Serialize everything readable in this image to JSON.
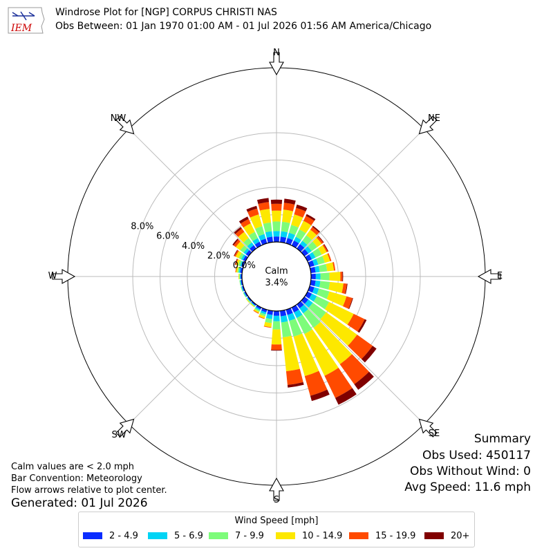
{
  "header": {
    "logo_text": "IEM",
    "title": "Windrose Plot for [NGP] CORPUS CHRISTI NAS",
    "subtitle": "Obs Between: 01 Jan 1970 01:00 AM - 01 Jul 2026 01:56 AM America/Chicago"
  },
  "notes": {
    "calm": "Calm values are < 2.0 mph",
    "bar_convention": "Bar Convention: Meteorology",
    "flow_arrows": "Flow arrows relative to plot center.",
    "generated": "Generated: 01 Jul 2026"
  },
  "summary": {
    "title": "Summary",
    "obs_used": "Obs Used: 450117",
    "obs_without_wind": "Obs Without Wind: 0",
    "avg_speed": "Avg Speed: 11.6 mph"
  },
  "center": {
    "label": "Calm",
    "value": "3.4%"
  },
  "colors": {
    "bins": [
      "#0a2cff",
      "#00d4f5",
      "#7dfc7a",
      "#fde800",
      "#ff4a00",
      "#800000"
    ],
    "grid": "#bbbbbb"
  },
  "chart_data": {
    "type": "windrose",
    "direction_labels": [
      "N",
      "NE",
      "E",
      "SE",
      "S",
      "SW",
      "W",
      "NW"
    ],
    "radial_ticks": [
      "0.0%",
      "2.0%",
      "4.0%",
      "6.0%",
      "8.0%"
    ],
    "radial_max": 8.0,
    "legend_title": "Wind Speed [mph]",
    "bins": [
      "2 - 4.9",
      "5 - 6.9",
      "7 - 9.9",
      "10 - 14.9",
      "15 - 19.9",
      "20+"
    ],
    "sectors": [
      {
        "dir": 0,
        "values": [
          0.4,
          0.4,
          0.7,
          0.8,
          0.5,
          0.3
        ]
      },
      {
        "dir": 10,
        "values": [
          0.4,
          0.4,
          0.7,
          0.9,
          0.5,
          0.3
        ]
      },
      {
        "dir": 20,
        "values": [
          0.4,
          0.4,
          0.6,
          0.8,
          0.5,
          0.25
        ]
      },
      {
        "dir": 30,
        "values": [
          0.4,
          0.3,
          0.6,
          0.7,
          0.4,
          0.15
        ]
      },
      {
        "dir": 40,
        "values": [
          0.4,
          0.3,
          0.5,
          0.5,
          0.25,
          0.1
        ]
      },
      {
        "dir": 50,
        "values": [
          0.35,
          0.3,
          0.5,
          0.4,
          0.15,
          0.05
        ]
      },
      {
        "dir": 60,
        "values": [
          0.35,
          0.3,
          0.5,
          0.4,
          0.1,
          0.05
        ]
      },
      {
        "dir": 70,
        "values": [
          0.35,
          0.3,
          0.5,
          0.4,
          0.1,
          0.0
        ]
      },
      {
        "dir": 80,
        "values": [
          0.35,
          0.3,
          0.55,
          0.5,
          0.1,
          0.0
        ]
      },
      {
        "dir": 90,
        "values": [
          0.35,
          0.35,
          0.65,
          0.8,
          0.15,
          0.05
        ]
      },
      {
        "dir": 100,
        "values": [
          0.35,
          0.35,
          0.7,
          1.0,
          0.25,
          0.05
        ]
      },
      {
        "dir": 110,
        "values": [
          0.35,
          0.35,
          0.8,
          1.3,
          0.45,
          0.05
        ]
      },
      {
        "dir": 120,
        "values": [
          0.35,
          0.4,
          1.0,
          2.0,
          0.9,
          0.15
        ]
      },
      {
        "dir": 130,
        "values": [
          0.35,
          0.4,
          1.2,
          2.8,
          1.4,
          0.35
        ]
      },
      {
        "dir": 140,
        "values": [
          0.35,
          0.45,
          1.3,
          3.3,
          1.8,
          0.5
        ]
      },
      {
        "dir": 150,
        "values": [
          0.4,
          0.45,
          1.3,
          3.4,
          1.8,
          0.55
        ]
      },
      {
        "dir": 160,
        "values": [
          0.4,
          0.45,
          1.2,
          3.0,
          1.5,
          0.4
        ]
      },
      {
        "dir": 170,
        "values": [
          0.4,
          0.45,
          1.1,
          2.5,
          1.0,
          0.2
        ]
      },
      {
        "dir": 180,
        "values": [
          0.35,
          0.4,
          0.6,
          1.1,
          0.4,
          0.05
        ]
      },
      {
        "dir": 190,
        "values": [
          0.3,
          0.3,
          0.3,
          0.3,
          0.05,
          0.0
        ]
      },
      {
        "dir": 200,
        "values": [
          0.2,
          0.15,
          0.15,
          0.15,
          0.05,
          0.0
        ]
      },
      {
        "dir": 210,
        "values": [
          0.15,
          0.1,
          0.1,
          0.1,
          0.05,
          0.0
        ]
      },
      {
        "dir": 220,
        "values": [
          0.1,
          0.05,
          0.05,
          0.05,
          0.0,
          0.0
        ]
      },
      {
        "dir": 230,
        "values": [
          0.1,
          0.05,
          0.05,
          0.05,
          0.0,
          0.0
        ]
      },
      {
        "dir": 240,
        "values": [
          0.1,
          0.05,
          0.05,
          0.0,
          0.0,
          0.0
        ]
      },
      {
        "dir": 250,
        "values": [
          0.1,
          0.05,
          0.05,
          0.0,
          0.0,
          0.0
        ]
      },
      {
        "dir": 260,
        "values": [
          0.1,
          0.05,
          0.05,
          0.0,
          0.0,
          0.0
        ]
      },
      {
        "dir": 270,
        "values": [
          0.1,
          0.05,
          0.05,
          0.05,
          0.0,
          0.0
        ]
      },
      {
        "dir": 280,
        "values": [
          0.15,
          0.1,
          0.1,
          0.1,
          0.05,
          0.0
        ]
      },
      {
        "dir": 290,
        "values": [
          0.15,
          0.1,
          0.15,
          0.15,
          0.05,
          0.05
        ]
      },
      {
        "dir": 300,
        "values": [
          0.2,
          0.15,
          0.2,
          0.25,
          0.1,
          0.05
        ]
      },
      {
        "dir": 310,
        "values": [
          0.25,
          0.2,
          0.3,
          0.4,
          0.2,
          0.1
        ]
      },
      {
        "dir": 320,
        "values": [
          0.3,
          0.25,
          0.4,
          0.55,
          0.3,
          0.15
        ]
      },
      {
        "dir": 330,
        "values": [
          0.3,
          0.3,
          0.5,
          0.7,
          0.35,
          0.2
        ]
      },
      {
        "dir": 340,
        "values": [
          0.35,
          0.35,
          0.6,
          0.9,
          0.45,
          0.2
        ]
      },
      {
        "dir": 350,
        "values": [
          0.4,
          0.4,
          0.65,
          1.0,
          0.5,
          0.3
        ]
      }
    ]
  }
}
